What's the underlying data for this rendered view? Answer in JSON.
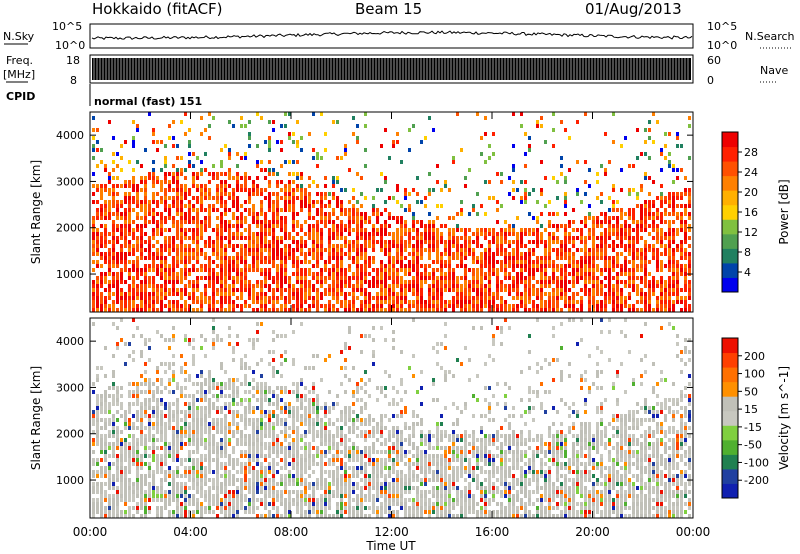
{
  "header": {
    "site": "Hokkaido (fitACF)",
    "beam": "Beam 15",
    "date": "01/Aug/2013"
  },
  "status_panel": {
    "nsky_label": "N.Sky",
    "nsky_ticks": [
      "10^5",
      "10^0"
    ],
    "nsearch_label": "N.Search",
    "freq_label_1": "Freq.",
    "freq_label_2": "[MHz]",
    "freq_ticks": [
      "18",
      "8"
    ],
    "nave_label": "Nave",
    "nave_ticks": [
      "60",
      "0"
    ],
    "cpid_label": "CPID",
    "cpid_value": "normal (fast) 151"
  },
  "chart_data": [
    {
      "type": "heatmap",
      "title": "Power",
      "ylabel": "Slant Range [km]",
      "colorbar_label": "Power [dB]",
      "colorbar_ticks": [
        "28",
        "24",
        "20",
        "16",
        "12",
        "8",
        "4"
      ],
      "colors": [
        "#0000ee",
        "#0044aa",
        "#208060",
        "#50a050",
        "#80c040",
        "#ffd000",
        "#ffb000",
        "#ff8000",
        "#ff5000",
        "#ff2000",
        "#ee0000"
      ],
      "y_ticks": [
        "1000",
        "2000",
        "3000",
        "4000"
      ],
      "ylim": [
        180,
        4500
      ],
      "x_ticks": [
        "00:00",
        "04:00",
        "08:00",
        "12:00",
        "16:00",
        "20:00",
        "00:00"
      ]
    },
    {
      "type": "heatmap",
      "title": "Velocity",
      "ylabel": "Slant Range [km]",
      "colorbar_label": "Velocity [m s^-1]",
      "colorbar_ticks": [
        "200",
        "100",
        "50",
        "15",
        "-15",
        "-50",
        "-100",
        "-200"
      ],
      "colors": [
        "#1020b0",
        "#2040a0",
        "#208050",
        "#50b030",
        "#80d040",
        "#c8c8c0",
        "#c0c0b8",
        "#ff9000",
        "#ff7000",
        "#ff4000",
        "#ee1000"
      ],
      "y_ticks": [
        "1000",
        "2000",
        "3000",
        "4000"
      ],
      "ylim": [
        180,
        4500
      ],
      "x_ticks": [
        "00:00",
        "04:00",
        "08:00",
        "12:00",
        "16:00",
        "20:00",
        "00:00"
      ],
      "xlabel": "Time UT"
    }
  ]
}
